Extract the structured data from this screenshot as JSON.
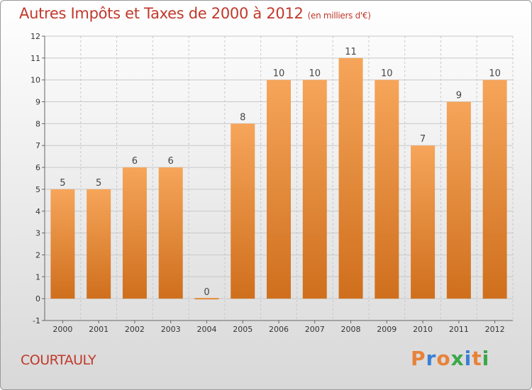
{
  "title": "Autres Impôts et Taxes de 2000 à 2012",
  "subtitle": "(en milliers d'€)",
  "place": "COURTAULY",
  "logo": {
    "text": "Proxiti",
    "letters": [
      "P",
      "r",
      "o",
      "x",
      "i",
      "t",
      "i"
    ],
    "colors": [
      "#e8823a",
      "#3a7fd5",
      "#e8823a",
      "#3aa84a",
      "#3a7fd5",
      "#e8823a",
      "#3aa84a"
    ]
  },
  "colors": {
    "bar_top": "#f6a55a",
    "bar_bottom": "#cf6f1d",
    "title": "#c0392b"
  },
  "chart_data": {
    "type": "bar",
    "title": "Autres Impôts et Taxes de 2000 à 2012",
    "subtitle": "(en milliers d'€)",
    "categories": [
      "2000",
      "2001",
      "2002",
      "2003",
      "2004",
      "2005",
      "2006",
      "2007",
      "2008",
      "2009",
      "2010",
      "2011",
      "2012"
    ],
    "values": [
      5,
      5,
      6,
      6,
      0,
      8,
      10,
      10,
      11,
      10,
      7,
      9,
      10
    ],
    "value_labels": [
      "5",
      "5",
      "6",
      "6",
      "0",
      "8",
      "10",
      "10",
      "11",
      "10",
      "7",
      "9",
      "10"
    ],
    "ylim": [
      -1,
      12
    ],
    "yticks": [
      -1,
      0,
      1,
      2,
      3,
      4,
      5,
      6,
      7,
      8,
      9,
      10,
      11,
      12
    ],
    "ytick_labels": [
      "-1",
      "0",
      "1",
      "2",
      "3",
      "4",
      "5",
      "6",
      "7",
      "8",
      "9",
      "10",
      "11",
      "12"
    ],
    "grid": true,
    "xlabel": "",
    "ylabel": ""
  }
}
